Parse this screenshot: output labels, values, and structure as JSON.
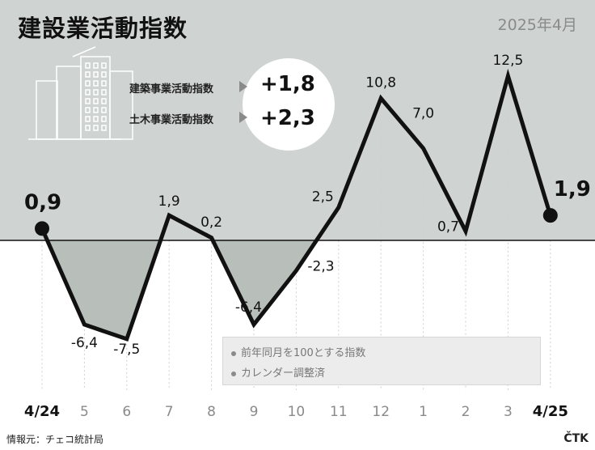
{
  "header": {
    "title": "建設業活動指数",
    "date": "2025年4月"
  },
  "indices": [
    {
      "label": "建築事業活動指数",
      "value": "+1,8"
    },
    {
      "label": "土木事業活動指数",
      "value": "+2,3"
    }
  ],
  "legend": {
    "items": [
      "前年同月を100とする指数",
      "カレンダー調整済"
    ]
  },
  "footer": {
    "source": "情報元：チェコ統計局",
    "agency": "ČTK"
  },
  "colors": {
    "background_gray": "#cfd3d1",
    "negative_fill": "#b8bfbb",
    "line": "#111111"
  },
  "chart_data": {
    "type": "line",
    "title": "建設業活動指数",
    "categories": [
      "4/24",
      "5",
      "6",
      "7",
      "8",
      "9",
      "10",
      "11",
      "12",
      "1",
      "2",
      "3",
      "4/25"
    ],
    "values": [
      0.9,
      -6.4,
      -7.5,
      1.9,
      0.2,
      -6.4,
      -2.3,
      2.5,
      10.8,
      7.0,
      0.7,
      12.5,
      1.9
    ],
    "labels": [
      "0,9",
      "-6,4",
      "-7,5",
      "1,9",
      "0,2",
      "-6,4",
      "-2,3",
      "2,5",
      "10,8",
      "7,0",
      "0,7",
      "12,5",
      "1,9"
    ],
    "baseline": 0,
    "ylim": [
      -8,
      14
    ],
    "grid": true,
    "xlabel": "",
    "ylabel": ""
  }
}
